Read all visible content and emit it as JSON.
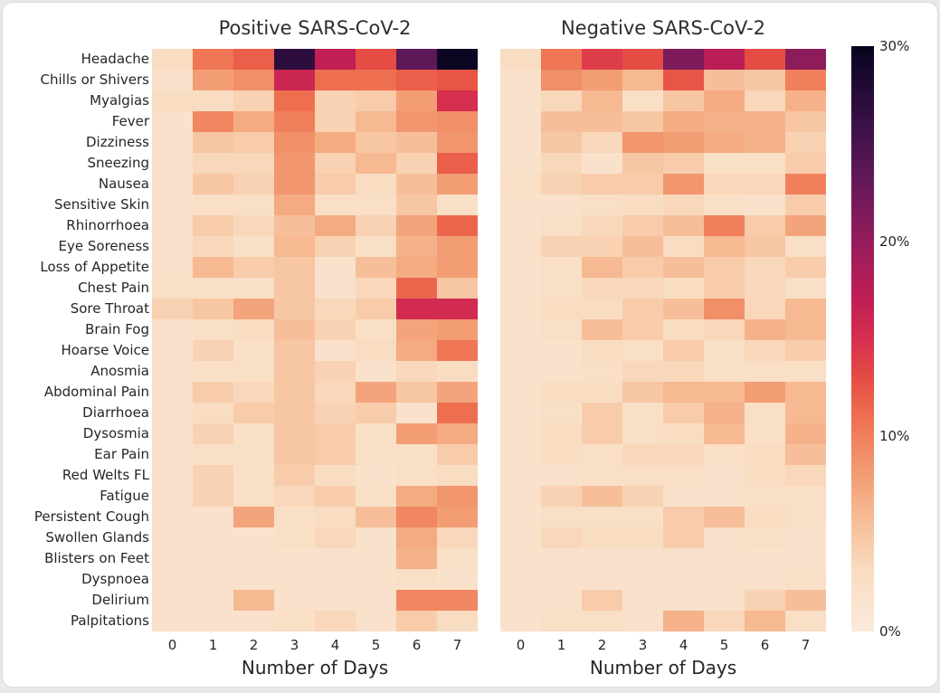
{
  "figure": {
    "page_background": "#e9e9e9",
    "card_background": "#ffffff",
    "card_border": "#dcdcdc"
  },
  "chart_data": {
    "type": "heatmap",
    "value_unit": "%",
    "x_label": "Number of Days",
    "x_ticks": [
      "0",
      "1",
      "2",
      "3",
      "4",
      "5",
      "6",
      "7"
    ],
    "rows": [
      "Headache",
      "Chills or Shivers",
      "Myalgias",
      "Fever",
      "Dizziness",
      "Sneezing",
      "Nausea",
      "Sensitive Skin",
      "Rhinorrhoea",
      "Eye Soreness",
      "Loss of Appetite",
      "Chest Pain",
      "Sore Throat",
      "Brain Fog",
      "Hoarse Voice",
      "Anosmia",
      "Abdominal Pain",
      "Diarrhoea",
      "Dysosmia",
      "Ear Pain",
      "Red Welts FL",
      "Fatigue",
      "Persistent Cough",
      "Swollen Glands",
      "Blisters on Feet",
      "Dyspnoea",
      "Delirium",
      "Palpitations"
    ],
    "panels": [
      {
        "title": "Positive SARS-CoV-2",
        "values": [
          [
            3,
            10.5,
            12,
            27,
            17,
            13,
            23.5,
            29.5
          ],
          [
            2,
            8,
            9,
            16,
            11,
            11,
            12,
            12.5
          ],
          [
            3,
            3,
            4,
            11,
            4,
            4.5,
            8,
            15
          ],
          [
            2,
            9.5,
            7,
            10,
            4,
            6,
            8.5,
            9
          ],
          [
            2,
            5,
            4.5,
            9,
            7,
            5,
            5.5,
            8.5
          ],
          [
            2,
            3.5,
            3.5,
            8.5,
            4,
            6,
            4,
            12
          ],
          [
            2,
            5,
            4,
            8.5,
            4.5,
            3,
            5.5,
            8
          ],
          [
            2,
            2.5,
            2.5,
            7,
            2.5,
            2.5,
            5,
            2.5
          ],
          [
            2,
            4.5,
            3.5,
            5.5,
            7,
            4,
            7.5,
            11.5
          ],
          [
            2,
            3.5,
            2.5,
            6,
            4,
            2.5,
            6.5,
            8
          ],
          [
            2,
            6,
            4.5,
            5,
            2,
            5.5,
            7,
            8
          ],
          [
            2.5,
            2.5,
            2.5,
            5,
            2,
            3.5,
            11.5,
            5
          ],
          [
            4,
            5,
            7.5,
            5,
            3.5,
            4.5,
            15.5,
            15.5
          ],
          [
            2,
            2.5,
            3,
            5.5,
            4,
            2.5,
            7.5,
            8
          ],
          [
            2,
            4,
            2.5,
            5,
            2,
            3,
            7,
            10.5
          ],
          [
            2,
            2.5,
            2.5,
            5,
            4,
            2,
            3.5,
            3
          ],
          [
            2,
            4.5,
            3.5,
            5,
            3.5,
            7.5,
            5,
            7.5
          ],
          [
            2,
            3,
            4.5,
            5,
            4,
            4.5,
            2,
            11
          ],
          [
            2,
            4,
            2.5,
            5,
            4.5,
            2.5,
            8,
            7
          ],
          [
            2,
            2.5,
            2.5,
            5,
            4.5,
            2.5,
            2.5,
            4.5
          ],
          [
            2,
            4,
            2.5,
            4.5,
            3,
            2,
            2.5,
            3
          ],
          [
            2,
            4,
            2.5,
            3.5,
            4.5,
            2.5,
            7,
            8.5
          ],
          [
            2,
            2,
            7.5,
            2.5,
            3,
            5.5,
            9.5,
            8
          ],
          [
            2,
            2,
            2,
            2.5,
            3.5,
            2,
            7,
            3.5
          ],
          [
            2,
            2,
            2,
            2,
            2,
            2,
            6.5,
            2.5
          ],
          [
            2,
            2,
            2,
            2,
            2,
            2,
            2.5,
            2
          ],
          [
            2,
            2,
            6,
            2,
            2,
            2,
            9.5,
            9.5
          ],
          [
            2,
            2,
            2,
            2.5,
            3.5,
            2,
            4.5,
            3
          ]
        ]
      },
      {
        "title": "Negative SARS-CoV-2",
        "values": [
          [
            3,
            10.5,
            14,
            13,
            21.5,
            17.5,
            13,
            20.5
          ],
          [
            2,
            9,
            8,
            6,
            12.5,
            5.5,
            5,
            10
          ],
          [
            2,
            3.5,
            6,
            2.5,
            5,
            7,
            3.5,
            6.5
          ],
          [
            2,
            5.5,
            5.5,
            5,
            7,
            6.5,
            6.5,
            5
          ],
          [
            2,
            5,
            3.5,
            8.5,
            8,
            7,
            6.5,
            4
          ],
          [
            2,
            3.5,
            2,
            5,
            4.5,
            2.5,
            2.5,
            4.5
          ],
          [
            2.5,
            4,
            4.5,
            4.5,
            8.5,
            3.5,
            3.5,
            10
          ],
          [
            2,
            2,
            2.5,
            3,
            3.5,
            2.5,
            2,
            4.5
          ],
          [
            2,
            2.5,
            3.5,
            4.5,
            5.5,
            10,
            4.5,
            7.5
          ],
          [
            2,
            4,
            4,
            5.5,
            3,
            6,
            5,
            2.5
          ],
          [
            2,
            2.5,
            6,
            4.5,
            5.5,
            4.5,
            3.5,
            4.5
          ],
          [
            2,
            2.5,
            3.5,
            3.5,
            3,
            4.5,
            3.5,
            2.5
          ],
          [
            2,
            3,
            3,
            4.5,
            5.5,
            9,
            3.5,
            6
          ],
          [
            2,
            2.5,
            5.5,
            4.5,
            3,
            3.5,
            6.5,
            6
          ],
          [
            2,
            2,
            3,
            2.5,
            4.5,
            2.5,
            3.5,
            4.5
          ],
          [
            2,
            2,
            2.5,
            3.5,
            3.5,
            2.5,
            2.5,
            2.5
          ],
          [
            2,
            3,
            3,
            5,
            6,
            6,
            8,
            6
          ],
          [
            2,
            2.5,
            4.5,
            2.5,
            4.5,
            6.5,
            2.5,
            6
          ],
          [
            2,
            3,
            4.5,
            2.5,
            3,
            6,
            2.5,
            6.5
          ],
          [
            2,
            3,
            2.5,
            3.5,
            3.5,
            2.5,
            3,
            5.5
          ],
          [
            2,
            2,
            2.5,
            2.5,
            2.5,
            2,
            3,
            3.5
          ],
          [
            2,
            4,
            5.5,
            4,
            2,
            2,
            2.5,
            2.5
          ],
          [
            2,
            2.5,
            2.5,
            2.5,
            4.5,
            5.5,
            3,
            2.5
          ],
          [
            2,
            3.5,
            3,
            3,
            4.5,
            2,
            2.5,
            2
          ],
          [
            2,
            2,
            2,
            2,
            2,
            2,
            2,
            2
          ],
          [
            2,
            2,
            2,
            2,
            2,
            2,
            2,
            2.5
          ],
          [
            2,
            2,
            4.5,
            2,
            2,
            2,
            4,
            5.5
          ],
          [
            2,
            2.5,
            2.5,
            2,
            6.5,
            3.5,
            6,
            2.5
          ]
        ]
      }
    ],
    "colorbar": {
      "min": 0,
      "max": 30,
      "ticks": [
        {
          "value": 30,
          "label": "30%"
        },
        {
          "value": 20,
          "label": "20%"
        },
        {
          "value": 10,
          "label": "10%"
        },
        {
          "value": 0,
          "label": "0%"
        }
      ],
      "colormap_stops": [
        [
          0,
          "#faeadc"
        ],
        [
          3,
          "#f9ddc2"
        ],
        [
          5,
          "#f7c6a2"
        ],
        [
          7,
          "#f4ab82"
        ],
        [
          9,
          "#f18f68"
        ],
        [
          11,
          "#ee6f50"
        ],
        [
          13,
          "#e54c44"
        ],
        [
          15,
          "#d62f4f"
        ],
        [
          17,
          "#c01e55"
        ],
        [
          20,
          "#951c5b"
        ],
        [
          23,
          "#64195a"
        ],
        [
          26,
          "#3a1048"
        ],
        [
          30,
          "#06041e"
        ]
      ]
    }
  }
}
